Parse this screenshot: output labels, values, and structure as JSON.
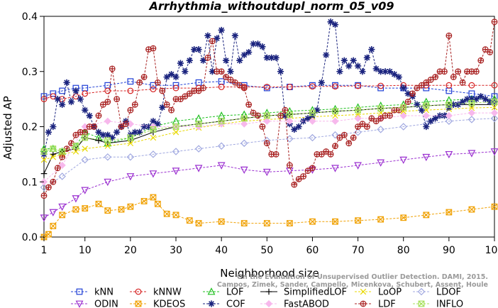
{
  "chart_data": {
    "type": "line",
    "title": "Arrhythmia_withoutdupl_norm_05_v09",
    "xlabel": "Neighborhood size",
    "ylabel": "Adjusted AP",
    "xlim": [
      1,
      100
    ],
    "ylim": [
      0,
      0.4
    ],
    "x_ticks": [
      1,
      10,
      20,
      30,
      40,
      50,
      60,
      70,
      80,
      90,
      100
    ],
    "y_ticks": [
      0.0,
      0.1,
      0.2,
      0.3,
      0.4
    ],
    "x_tick_labels": [
      "1",
      "10",
      "20",
      "30",
      "40",
      "50",
      "60",
      "70",
      "80",
      "90",
      "100"
    ],
    "y_tick_labels": [
      "0.0",
      "0.1",
      "0.2",
      "0.3",
      "0.4"
    ],
    "watermark": [
      "Campos, Zimek, Sander, Campello, Micenkova, Schubert, Assent, Houle",
      "On the Evaluation of Unsupervised Outlier Detection. DAMI, 2015."
    ],
    "legend_position": "bottom",
    "series": [
      {
        "name": "kNN",
        "color": "#1f3fd6",
        "marker": "square",
        "dashed": true,
        "x": [
          1,
          3,
          5,
          8,
          10,
          15,
          20,
          25,
          30,
          35,
          40,
          45,
          50,
          55,
          60,
          65,
          70,
          75,
          80,
          85,
          90,
          95,
          100
        ],
        "y": [
          0.255,
          0.26,
          0.265,
          0.27,
          0.27,
          0.275,
          0.282,
          0.275,
          0.275,
          0.28,
          0.282,
          0.275,
          0.27,
          0.272,
          0.275,
          0.275,
          0.275,
          0.27,
          0.27,
          0.27,
          0.265,
          0.26,
          0.255
        ]
      },
      {
        "name": "kNNW",
        "color": "#d62020",
        "marker": "circle",
        "dashed": true,
        "x": [
          1,
          3,
          5,
          8,
          10,
          15,
          20,
          25,
          30,
          35,
          40,
          45,
          50,
          55,
          60,
          65,
          70,
          75,
          80,
          85,
          90,
          95,
          100
        ],
        "y": [
          0.25,
          0.255,
          0.25,
          0.255,
          0.26,
          0.265,
          0.265,
          0.268,
          0.27,
          0.27,
          0.272,
          0.272,
          0.272,
          0.272,
          0.273,
          0.273,
          0.274,
          0.274,
          0.275,
          0.275,
          0.275,
          0.275,
          0.275
        ]
      },
      {
        "name": "LOF",
        "color": "#20c020",
        "marker": "triangle-up",
        "dashed": true,
        "x": [
          1,
          3,
          5,
          8,
          10,
          13,
          15,
          20,
          25,
          30,
          35,
          40,
          45,
          50,
          55,
          60,
          65,
          70,
          75,
          80,
          85,
          90,
          95,
          100
        ],
        "y": [
          0.16,
          0.16,
          0.155,
          0.165,
          0.19,
          0.18,
          0.17,
          0.18,
          0.2,
          0.21,
          0.215,
          0.22,
          0.222,
          0.225,
          0.228,
          0.23,
          0.232,
          0.235,
          0.238,
          0.24,
          0.245,
          0.248,
          0.25,
          0.25
        ]
      },
      {
        "name": "SimplifiedLOF",
        "color": "#000000",
        "marker": "plus",
        "dashed": false,
        "x": [
          1,
          3,
          5,
          8,
          10,
          13,
          15,
          20,
          25,
          30,
          35,
          40,
          45,
          50,
          55,
          60,
          65,
          70,
          75,
          80,
          85,
          90,
          95,
          100
        ],
        "y": [
          0.115,
          0.15,
          0.155,
          0.16,
          0.18,
          0.175,
          0.17,
          0.175,
          0.19,
          0.2,
          0.205,
          0.21,
          0.215,
          0.22,
          0.222,
          0.225,
          0.228,
          0.23,
          0.233,
          0.235,
          0.238,
          0.24,
          0.24,
          0.24
        ]
      },
      {
        "name": "LoOP",
        "color": "#e8d800",
        "marker": "x",
        "dashed": true,
        "x": [
          1,
          3,
          5,
          8,
          10,
          15,
          20,
          25,
          30,
          35,
          40,
          45,
          50,
          55,
          60,
          65,
          70,
          75,
          80,
          85,
          90,
          95,
          100
        ],
        "y": [
          0.14,
          0.145,
          0.15,
          0.155,
          0.16,
          0.165,
          0.17,
          0.18,
          0.19,
          0.198,
          0.205,
          0.21,
          0.213,
          0.215,
          0.218,
          0.22,
          0.222,
          0.225,
          0.228,
          0.23,
          0.232,
          0.234,
          0.235
        ]
      },
      {
        "name": "LDOF",
        "color": "#a0a8e0",
        "marker": "diamond",
        "dashed": true,
        "x": [
          1,
          5,
          10,
          15,
          20,
          25,
          30,
          35,
          40,
          45,
          50,
          55,
          60,
          65,
          70,
          75,
          80,
          85,
          90,
          95,
          100
        ],
        "y": [
          0.09,
          0.11,
          0.14,
          0.145,
          0.145,
          0.15,
          0.155,
          0.16,
          0.165,
          0.17,
          0.175,
          0.178,
          0.18,
          0.185,
          0.19,
          0.195,
          0.2,
          0.205,
          0.21,
          0.213,
          0.215
        ]
      },
      {
        "name": "ODIN",
        "color": "#9b30d0",
        "marker": "triangle-down",
        "dashed": true,
        "x": [
          1,
          3,
          5,
          8,
          10,
          15,
          20,
          25,
          30,
          35,
          40,
          45,
          50,
          55,
          60,
          65,
          70,
          75,
          80,
          85,
          90,
          95,
          100
        ],
        "y": [
          0.035,
          0.045,
          0.055,
          0.07,
          0.085,
          0.1,
          0.11,
          0.115,
          0.12,
          0.125,
          0.13,
          0.122,
          0.118,
          0.12,
          0.122,
          0.125,
          0.13,
          0.135,
          0.14,
          0.145,
          0.15,
          0.152,
          0.155
        ]
      },
      {
        "name": "KDEOS",
        "color": "#f0a000",
        "marker": "square-x",
        "dashed": true,
        "x": [
          1,
          2,
          3,
          5,
          8,
          10,
          13,
          15,
          18,
          20,
          23,
          25,
          26,
          28,
          30,
          33,
          35,
          40,
          45,
          50,
          55,
          60,
          65,
          70,
          75,
          80,
          85,
          90,
          95,
          100
        ],
        "y": [
          0.0,
          0.005,
          0.02,
          0.04,
          0.05,
          0.052,
          0.06,
          0.048,
          0.05,
          0.055,
          0.065,
          0.072,
          0.06,
          0.042,
          0.04,
          0.03,
          0.025,
          0.028,
          0.025,
          0.025,
          0.025,
          0.028,
          0.028,
          0.03,
          0.032,
          0.035,
          0.04,
          0.045,
          0.05,
          0.055
        ]
      },
      {
        "name": "COF",
        "color": "#1a237e",
        "marker": "star",
        "dashed": true,
        "x": [
          1,
          2,
          3,
          4,
          5,
          6,
          7,
          8,
          9,
          10,
          11,
          12,
          13,
          14,
          15,
          16,
          17,
          18,
          19,
          20,
          21,
          22,
          23,
          24,
          25,
          26,
          27,
          28,
          29,
          30,
          31,
          32,
          33,
          34,
          35,
          36,
          37,
          38,
          39,
          40,
          41,
          42,
          43,
          44,
          45,
          46,
          47,
          48,
          49,
          50,
          51,
          52,
          53,
          54,
          55,
          56,
          57,
          58,
          59,
          60,
          61,
          62,
          63,
          64,
          65,
          66,
          67,
          68,
          69,
          70,
          71,
          72,
          73,
          74,
          75,
          76,
          77,
          78,
          79,
          80,
          81,
          82,
          83,
          84,
          85,
          86,
          87,
          88,
          89,
          90,
          91,
          92,
          93,
          94,
          95,
          96,
          97,
          98,
          99,
          100
        ],
        "y": [
          0.15,
          0.19,
          0.2,
          0.25,
          0.24,
          0.28,
          0.245,
          0.265,
          0.25,
          0.23,
          0.22,
          0.2,
          0.19,
          0.185,
          0.185,
          0.18,
          0.19,
          0.2,
          0.21,
          0.185,
          0.19,
          0.19,
          0.2,
          0.2,
          0.21,
          0.205,
          0.235,
          0.29,
          0.295,
          0.29,
          0.315,
          0.3,
          0.32,
          0.34,
          0.34,
          0.32,
          0.365,
          0.3,
          0.36,
          0.375,
          0.32,
          0.3,
          0.365,
          0.32,
          0.33,
          0.335,
          0.35,
          0.35,
          0.345,
          0.325,
          0.325,
          0.325,
          0.3,
          0.22,
          0.205,
          0.195,
          0.2,
          0.21,
          0.215,
          0.22,
          0.23,
          0.28,
          0.33,
          0.39,
          0.385,
          0.3,
          0.32,
          0.31,
          0.32,
          0.31,
          0.3,
          0.325,
          0.34,
          0.305,
          0.3,
          0.3,
          0.3,
          0.295,
          0.29,
          0.27,
          0.26,
          0.255,
          0.24,
          0.23,
          0.2,
          0.21,
          0.215,
          0.22,
          0.22,
          0.235,
          0.24,
          0.24,
          0.245,
          0.25,
          0.25,
          0.25,
          0.255,
          0.25,
          0.245,
          0.245
        ]
      },
      {
        "name": "FastABOD",
        "color": "#f7b8ec",
        "marker": "diamond-filled",
        "dashed": true,
        "x": [
          1,
          5,
          10,
          15,
          20,
          25,
          30,
          35,
          40,
          45,
          50,
          55,
          60,
          65,
          70,
          75,
          80,
          85,
          90,
          95,
          100
        ],
        "y": [
          0.1,
          0.13,
          0.2,
          0.21,
          0.205,
          0.2,
          0.2,
          0.2,
          0.205,
          0.205,
          0.21,
          0.21,
          0.21,
          0.21,
          0.215,
          0.215,
          0.22,
          0.22,
          0.22,
          0.225,
          0.225
        ]
      },
      {
        "name": "LDF",
        "color": "#a82020",
        "marker": "circle-plus",
        "dashed": true,
        "x": [
          1,
          2,
          3,
          4,
          5,
          6,
          7,
          8,
          9,
          10,
          11,
          12,
          13,
          14,
          15,
          16,
          17,
          18,
          19,
          20,
          21,
          22,
          23,
          24,
          25,
          26,
          27,
          28,
          29,
          30,
          31,
          32,
          33,
          34,
          35,
          36,
          37,
          38,
          39,
          40,
          41,
          42,
          43,
          44,
          45,
          46,
          47,
          48,
          49,
          50,
          51,
          52,
          53,
          54,
          55,
          56,
          57,
          58,
          59,
          60,
          61,
          62,
          63,
          64,
          65,
          66,
          67,
          68,
          69,
          70,
          71,
          72,
          73,
          74,
          75,
          76,
          77,
          78,
          79,
          80,
          81,
          82,
          83,
          84,
          85,
          86,
          87,
          88,
          89,
          90,
          91,
          92,
          93,
          94,
          95,
          96,
          97,
          98,
          99,
          100
        ],
        "y": [
          0.075,
          0.09,
          0.1,
          0.125,
          0.145,
          0.16,
          0.17,
          0.185,
          0.19,
          0.19,
          0.2,
          0.2,
          0.22,
          0.24,
          0.245,
          0.305,
          0.25,
          0.2,
          0.205,
          0.23,
          0.24,
          0.28,
          0.29,
          0.34,
          0.342,
          0.28,
          0.265,
          0.24,
          0.23,
          0.25,
          0.25,
          0.255,
          0.26,
          0.265,
          0.265,
          0.27,
          0.325,
          0.355,
          0.3,
          0.3,
          0.29,
          0.285,
          0.28,
          0.275,
          0.27,
          0.24,
          0.225,
          0.22,
          0.2,
          0.17,
          0.15,
          0.15,
          0.22,
          0.23,
          0.13,
          0.095,
          0.105,
          0.11,
          0.12,
          0.125,
          0.15,
          0.15,
          0.155,
          0.15,
          0.165,
          0.18,
          0.185,
          0.17,
          0.18,
          0.2,
          0.205,
          0.2,
          0.215,
          0.21,
          0.215,
          0.22,
          0.22,
          0.23,
          0.23,
          0.235,
          0.245,
          0.26,
          0.27,
          0.275,
          0.28,
          0.285,
          0.29,
          0.3,
          0.3,
          0.365,
          0.29,
          0.3,
          0.28,
          0.3,
          0.3,
          0.3,
          0.32,
          0.34,
          0.335,
          0.39
        ]
      },
      {
        "name": "INFLO",
        "color": "#a6e05a",
        "marker": "square-x",
        "dashed": true,
        "x": [
          1,
          3,
          5,
          8,
          10,
          15,
          20,
          25,
          30,
          35,
          40,
          45,
          50,
          55,
          60,
          65,
          70,
          75,
          80,
          85,
          90,
          95,
          100
        ],
        "y": [
          0.155,
          0.16,
          0.155,
          0.165,
          0.18,
          0.175,
          0.18,
          0.195,
          0.2,
          0.205,
          0.21,
          0.215,
          0.22,
          0.222,
          0.225,
          0.228,
          0.23,
          0.233,
          0.235,
          0.238,
          0.24,
          0.243,
          0.245
        ]
      }
    ]
  }
}
